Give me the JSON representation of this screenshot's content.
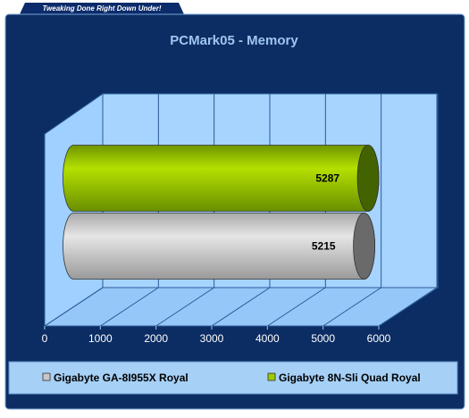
{
  "header": {
    "tagline": "Tweaking Done Right Down Under!"
  },
  "chart_data": {
    "type": "bar",
    "title": "PCMark05 - Memory",
    "categories": [
      null
    ],
    "series": [
      {
        "name": "Gigabyte GA-8I955X Royal",
        "color": "#c8c8c8",
        "values": [
          5215
        ]
      },
      {
        "name": "Gigabyte 8N-Sli Quad Royal",
        "color": "#99cc00",
        "values": [
          5287
        ]
      }
    ],
    "xlim": [
      0,
      6000
    ],
    "xticks": [
      0,
      1000,
      2000,
      3000,
      4000,
      5000,
      6000
    ],
    "grid": true
  }
}
